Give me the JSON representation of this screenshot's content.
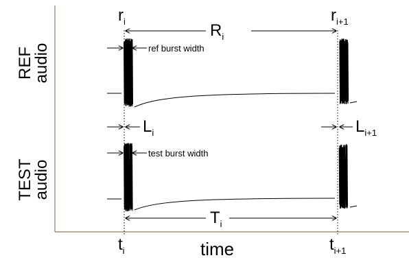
{
  "axis_labels": {
    "ref_audio_line1": "REF",
    "ref_audio_line2": "audio",
    "test_audio_line1": "TEST",
    "test_audio_line2": "audio",
    "x_axis": "time"
  },
  "markers": {
    "r_i": {
      "base": "r",
      "sub": "i"
    },
    "r_i1": {
      "base": "r",
      "sub": "i+1"
    },
    "R_i": {
      "base": "R",
      "sub": "i"
    },
    "L_i": {
      "base": "L",
      "sub": "i"
    },
    "L_i1": {
      "base": "L",
      "sub": "i+1"
    },
    "T_i": {
      "base": "T",
      "sub": "i"
    },
    "t_i": {
      "base": "t",
      "sub": "i"
    },
    "t_i1": {
      "base": "t",
      "sub": "i+1"
    }
  },
  "annotations": {
    "ref_burst": "ref burst width",
    "test_burst": "test burst width"
  },
  "colors": {
    "axis": "#8a7a5a",
    "signal": "#000000",
    "guide": "#000000"
  }
}
